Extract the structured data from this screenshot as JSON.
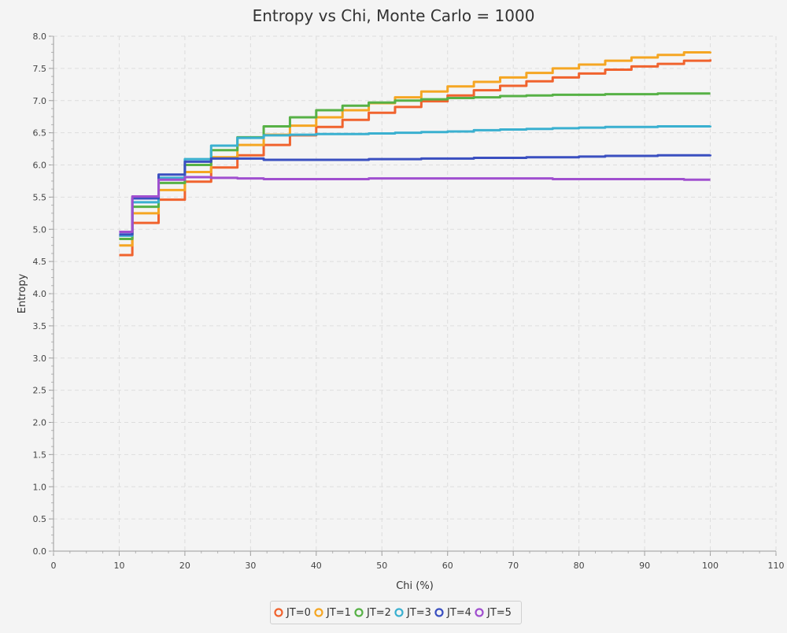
{
  "chart_data": {
    "type": "line",
    "title": "Entropy vs Chi, Monte Carlo = 1000",
    "xlabel": "Chi (%)",
    "ylabel": "Entropy",
    "xlim": [
      0,
      110
    ],
    "ylim": [
      0,
      8
    ],
    "xticks": [
      "0",
      "10",
      "20",
      "30",
      "40",
      "50",
      "60",
      "70",
      "80",
      "90",
      "100",
      "110"
    ],
    "yticks": [
      "0.0",
      "0.5",
      "1.0",
      "1.5",
      "2.0",
      "2.5",
      "3.0",
      "3.5",
      "4.0",
      "4.5",
      "5.0",
      "5.5",
      "6.0",
      "6.5",
      "7.0",
      "7.5",
      "8.0"
    ],
    "grid": true,
    "legend": "bottom",
    "x": [
      10,
      12,
      16,
      20,
      24,
      28,
      32,
      36,
      40,
      44,
      48,
      52,
      56,
      60,
      64,
      68,
      72,
      76,
      80,
      84,
      88,
      92,
      96,
      100
    ],
    "series": [
      {
        "name": "JT=0",
        "color": "#f0632e",
        "values": [
          4.6,
          5.1,
          5.46,
          5.74,
          5.96,
          6.15,
          6.31,
          6.46,
          6.59,
          6.7,
          6.81,
          6.9,
          6.99,
          7.08,
          7.16,
          7.23,
          7.3,
          7.36,
          7.42,
          7.48,
          7.53,
          7.57,
          7.62,
          7.64
        ]
      },
      {
        "name": "JT=1",
        "color": "#f5a623",
        "values": [
          4.75,
          5.25,
          5.61,
          5.89,
          6.12,
          6.31,
          6.47,
          6.61,
          6.74,
          6.85,
          6.96,
          7.05,
          7.14,
          7.22,
          7.29,
          7.36,
          7.43,
          7.5,
          7.56,
          7.62,
          7.67,
          7.71,
          7.75,
          7.76
        ]
      },
      {
        "name": "JT=2",
        "color": "#57b146",
        "values": [
          4.85,
          5.35,
          5.72,
          6.0,
          6.23,
          6.43,
          6.6,
          6.74,
          6.85,
          6.92,
          6.97,
          7.0,
          7.02,
          7.04,
          7.05,
          7.07,
          7.08,
          7.09,
          7.09,
          7.1,
          7.1,
          7.11,
          7.11,
          7.11
        ]
      },
      {
        "name": "JT=3",
        "color": "#3ab0d0",
        "values": [
          4.9,
          5.42,
          5.8,
          6.09,
          6.3,
          6.42,
          6.46,
          6.47,
          6.48,
          6.48,
          6.49,
          6.5,
          6.51,
          6.52,
          6.54,
          6.55,
          6.56,
          6.57,
          6.58,
          6.59,
          6.59,
          6.6,
          6.6,
          6.61
        ]
      },
      {
        "name": "JT=4",
        "color": "#3a4fc0",
        "values": [
          4.92,
          5.48,
          5.85,
          6.05,
          6.1,
          6.1,
          6.08,
          6.08,
          6.08,
          6.08,
          6.09,
          6.09,
          6.1,
          6.1,
          6.11,
          6.11,
          6.12,
          6.12,
          6.13,
          6.14,
          6.14,
          6.15,
          6.15,
          6.16
        ]
      },
      {
        "name": "JT=5",
        "color": "#a04fcf",
        "values": [
          4.96,
          5.51,
          5.77,
          5.81,
          5.8,
          5.79,
          5.78,
          5.78,
          5.78,
          5.78,
          5.79,
          5.79,
          5.79,
          5.79,
          5.79,
          5.79,
          5.79,
          5.78,
          5.78,
          5.78,
          5.78,
          5.78,
          5.77,
          5.77
        ]
      }
    ]
  }
}
